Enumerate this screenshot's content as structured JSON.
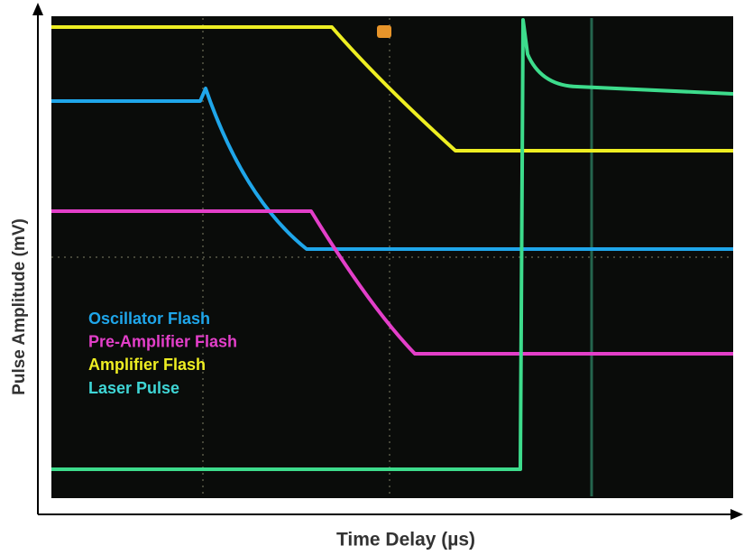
{
  "axes": {
    "x_label": "Time Delay (µs)",
    "y_label": "Pulse Amplitude (mV)"
  },
  "legend": [
    {
      "label": "Oscillator Flash",
      "color": "#1fa6ea"
    },
    {
      "label": "Pre-Amplifier Flash",
      "color": "#e33fc9"
    },
    {
      "label": "Amplifier Flash",
      "color": "#eeee22"
    },
    {
      "label": "Laser Pulse",
      "color": "#3fd6d6"
    }
  ]
}
